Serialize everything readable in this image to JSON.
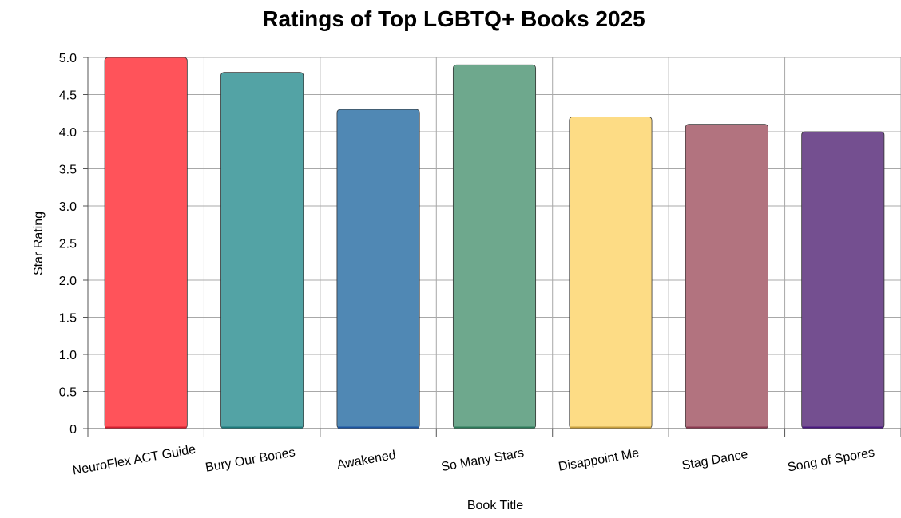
{
  "chart_data": {
    "type": "bar",
    "title": "Ratings of Top LGBTQ+ Books 2025",
    "xlabel": "Book Title",
    "ylabel": "Star Rating",
    "ylim": [
      0,
      5
    ],
    "yticks": [
      "0",
      "0.5",
      "1.0",
      "1.5",
      "2.0",
      "2.5",
      "3.0",
      "3.5",
      "4.0",
      "4.5",
      "5.0"
    ],
    "yticks_values": [
      0,
      0.5,
      1.0,
      1.5,
      2.0,
      2.5,
      3.0,
      3.5,
      4.0,
      4.5,
      5.0
    ],
    "grid": true,
    "categories": [
      "NeuroFlex ACT Guide",
      "Bury Our Bones",
      "Awakened",
      "So Many Stars",
      "Disappoint Me",
      "Stag Dance",
      "Song of Spores"
    ],
    "values": [
      5.0,
      4.8,
      4.3,
      4.9,
      4.2,
      4.1,
      4.0
    ],
    "colors": [
      "#ff535a",
      "#53a3a5",
      "#5088b4",
      "#6ea88d",
      "#fddc85",
      "#b2737f",
      "#744f90"
    ],
    "base_colors": [
      "#d42030",
      "#1e7a7c",
      "#1d55a0",
      "#2e7a5a",
      "#c8a040",
      "#8a3a50",
      "#4a1a80"
    ]
  }
}
